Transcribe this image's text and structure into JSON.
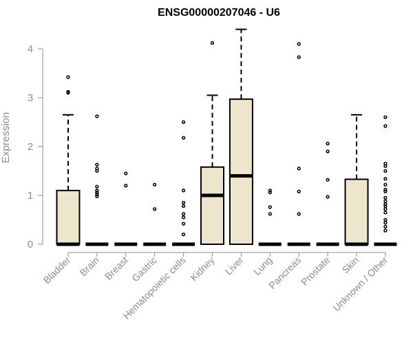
{
  "chart_data": {
    "type": "boxplot",
    "title": "ENSG00000207046 - U6",
    "ylabel": "Expression",
    "ylim": [
      0,
      4.4
    ],
    "yticks": [
      0,
      1,
      2,
      3,
      4
    ],
    "ytick_labels": [
      "0",
      "1",
      "2",
      "3",
      "4"
    ],
    "box_fill": "#ede6cd",
    "categories": [
      "Bladder",
      "Brain",
      "Breast",
      "Gastric",
      "Hematopoietic cells",
      "Kidney",
      "Liver",
      "Lung",
      "Pancreas",
      "Prostate",
      "Skin",
      "Unknown / Other"
    ],
    "boxes": [
      {
        "q1": 0,
        "median": 0,
        "q3": 1.1,
        "whisker_low": 0,
        "whisker_high": 2.65,
        "outliers": [
          3.1,
          3.12,
          3.42
        ]
      },
      {
        "q1": 0,
        "median": 0,
        "q3": 0,
        "whisker_low": 0,
        "whisker_high": 0,
        "outliers": [
          0.98,
          1.02,
          1.06,
          1.1,
          1.18,
          1.5,
          1.55,
          1.63,
          2.62
        ]
      },
      {
        "q1": 0,
        "median": 0,
        "q3": 0,
        "whisker_low": 0,
        "whisker_high": 0,
        "outliers": [
          1.2,
          1.45
        ]
      },
      {
        "q1": 0,
        "median": 0,
        "q3": 0,
        "whisker_low": 0,
        "whisker_high": 0,
        "outliers": [
          0.72,
          1.22
        ]
      },
      {
        "q1": 0,
        "median": 0,
        "q3": 0,
        "whisker_low": 0,
        "whisker_high": 0,
        "outliers": [
          0.2,
          0.42,
          0.55,
          0.62,
          0.78,
          0.85,
          1.1,
          2.18,
          2.5
        ]
      },
      {
        "q1": 0,
        "median": 1.0,
        "q3": 1.58,
        "whisker_low": 0,
        "whisker_high": 3.05,
        "outliers": [
          4.12
        ]
      },
      {
        "q1": 0,
        "median": 1.4,
        "q3": 2.97,
        "whisker_low": 0,
        "whisker_high": 4.4,
        "outliers": []
      },
      {
        "q1": 0,
        "median": 0,
        "q3": 0,
        "whisker_low": 0,
        "whisker_high": 0,
        "outliers": [
          0.62,
          0.76,
          1.06,
          1.1
        ]
      },
      {
        "q1": 0,
        "median": 0,
        "q3": 0,
        "whisker_low": 0,
        "whisker_high": 0,
        "outliers": [
          0.62,
          1.08,
          1.55,
          3.83,
          4.1
        ]
      },
      {
        "q1": 0,
        "median": 0,
        "q3": 0,
        "whisker_low": 0,
        "whisker_high": 0,
        "outliers": [
          0.97,
          1.32,
          1.9,
          2.06
        ]
      },
      {
        "q1": 0,
        "median": 0,
        "q3": 1.33,
        "whisker_low": 0,
        "whisker_high": 2.65,
        "outliers": []
      },
      {
        "q1": 0,
        "median": 0,
        "q3": 0,
        "whisker_low": 0,
        "whisker_high": 0,
        "outliers": [
          0.28,
          0.36,
          0.44,
          0.5,
          0.65,
          0.72,
          0.78,
          0.82,
          0.88,
          0.95,
          1.08,
          1.12,
          1.22,
          1.34,
          1.5,
          1.6,
          1.65,
          2.42,
          2.6
        ]
      }
    ]
  }
}
